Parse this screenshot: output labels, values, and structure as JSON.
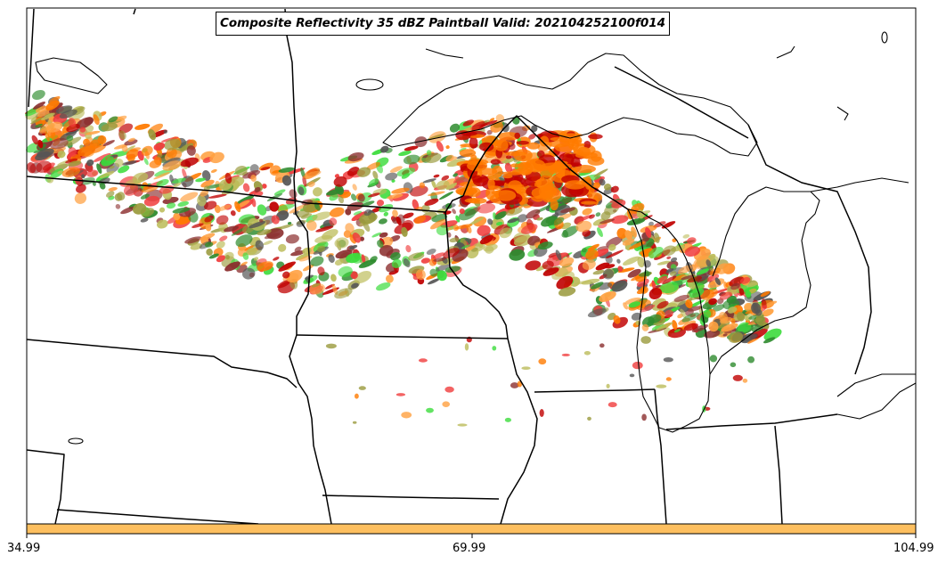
{
  "map": {
    "title": "Composite Reflectivity 35 dBZ Paintball Valid: 202104252100f014"
  },
  "colorbar": {
    "color": "#fdbf5f",
    "tick_labels": [
      "34.99",
      "69.99",
      "104.99"
    ]
  },
  "member_colors": [
    "#f03c3c",
    "#c00000",
    "#ff7a00",
    "#ffa040",
    "#3cdc3c",
    "#2e8b2e",
    "#9a9a3c",
    "#bcbc5a",
    "#8b2e2e",
    "#555555"
  ]
}
